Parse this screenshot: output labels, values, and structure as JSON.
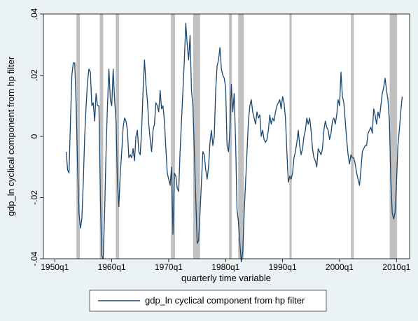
{
  "chart_data": {
    "type": "line",
    "y_label": "gdp_ln cyclical component from hp filter",
    "x_label": "quarterly time variable",
    "xlim": [
      1948,
      2012.3
    ],
    "ylim": [
      -0.04,
      0.04
    ],
    "xticks": [
      {
        "value": 1950,
        "label": "1950q1"
      },
      {
        "value": 1960,
        "label": "1960q1"
      },
      {
        "value": 1970,
        "label": "1970q1"
      },
      {
        "value": 1980,
        "label": "1980q1"
      },
      {
        "value": 1990,
        "label": "1990q1"
      },
      {
        "value": 2000,
        "label": "2000q1"
      },
      {
        "value": 2010,
        "label": "2010q1"
      }
    ],
    "yticks": [
      {
        "value": -0.04,
        "label": "-.04"
      },
      {
        "value": -0.02,
        "label": "-.02"
      },
      {
        "value": 0,
        "label": "0"
      },
      {
        "value": 0.02,
        "label": ".02"
      },
      {
        "value": 0.04,
        "label": ".04"
      }
    ],
    "grid": false,
    "shade_color": "#c0c0c0",
    "shaded_periods": [
      [
        1953.8,
        1954.4
      ],
      [
        1957.9,
        1958.5
      ],
      [
        1960.7,
        1961.3
      ],
      [
        1970.4,
        1971.1
      ],
      [
        1974.3,
        1975.5
      ],
      [
        1980.6,
        1981.1
      ],
      [
        1982.2,
        1983.2
      ],
      [
        1991.2,
        1991.6
      ],
      [
        2002.0,
        2002.5
      ],
      [
        2008.8,
        2010.1
      ]
    ],
    "x": [
      1952.0,
      1952.25,
      1952.5,
      1952.75,
      1953.0,
      1953.25,
      1953.5,
      1953.75,
      1954.0,
      1954.25,
      1954.5,
      1954.75,
      1955.0,
      1955.25,
      1955.5,
      1955.75,
      1956.0,
      1956.25,
      1956.5,
      1956.75,
      1957.0,
      1957.25,
      1957.5,
      1957.75,
      1958.0,
      1958.25,
      1958.5,
      1958.75,
      1959.0,
      1959.25,
      1959.5,
      1959.75,
      1960.0,
      1960.25,
      1960.5,
      1960.75,
      1961.0,
      1961.25,
      1961.5,
      1961.75,
      1962.0,
      1962.25,
      1962.5,
      1962.75,
      1963.0,
      1963.25,
      1963.5,
      1963.75,
      1964.0,
      1964.25,
      1964.5,
      1964.75,
      1965.0,
      1965.25,
      1965.5,
      1965.75,
      1966.0,
      1966.25,
      1966.5,
      1966.75,
      1967.0,
      1967.25,
      1967.5,
      1967.75,
      1968.0,
      1968.25,
      1968.5,
      1968.75,
      1969.0,
      1969.25,
      1969.5,
      1969.75,
      1970.0,
      1970.25,
      1970.5,
      1970.75,
      1971.0,
      1971.25,
      1971.5,
      1971.75,
      1972.0,
      1972.25,
      1972.5,
      1972.75,
      1973.0,
      1973.25,
      1973.5,
      1973.75,
      1974.0,
      1974.25,
      1974.5,
      1974.75,
      1975.0,
      1975.25,
      1975.5,
      1975.75,
      1976.0,
      1976.25,
      1976.5,
      1976.75,
      1977.0,
      1977.25,
      1977.5,
      1977.75,
      1978.0,
      1978.25,
      1978.5,
      1978.75,
      1979.0,
      1979.25,
      1979.5,
      1979.75,
      1980.0,
      1980.25,
      1980.5,
      1980.75,
      1981.0,
      1981.25,
      1981.5,
      1981.75,
      1982.0,
      1982.25,
      1982.5,
      1982.75,
      1983.0,
      1983.25,
      1983.5,
      1983.75,
      1984.0,
      1984.25,
      1984.5,
      1984.75,
      1985.0,
      1985.25,
      1985.5,
      1985.75,
      1986.0,
      1986.25,
      1986.5,
      1986.75,
      1987.0,
      1987.25,
      1987.5,
      1987.75,
      1988.0,
      1988.25,
      1988.5,
      1988.75,
      1989.0,
      1989.25,
      1989.5,
      1989.75,
      1990.0,
      1990.25,
      1990.5,
      1990.75,
      1991.0,
      1991.25,
      1991.5,
      1991.75,
      1992.0,
      1992.25,
      1992.5,
      1992.75,
      1993.0,
      1993.25,
      1993.5,
      1993.75,
      1994.0,
      1994.25,
      1994.5,
      1994.75,
      1995.0,
      1995.25,
      1995.5,
      1995.75,
      1996.0,
      1996.25,
      1996.5,
      1996.75,
      1997.0,
      1997.25,
      1997.5,
      1997.75,
      1998.0,
      1998.25,
      1998.5,
      1998.75,
      1999.0,
      1999.25,
      1999.5,
      1999.75,
      2000.0,
      2000.25,
      2000.5,
      2000.75,
      2001.0,
      2001.25,
      2001.5,
      2001.75,
      2002.0,
      2002.25,
      2002.5,
      2002.75,
      2003.0,
      2003.25,
      2003.5,
      2003.75,
      2004.0,
      2004.25,
      2004.5,
      2004.75,
      2005.0,
      2005.25,
      2005.5,
      2005.75,
      2006.0,
      2006.25,
      2006.5,
      2006.75,
      2007.0,
      2007.25,
      2007.5,
      2007.75,
      2008.0,
      2008.25,
      2008.5,
      2008.75,
      2009.0,
      2009.25,
      2009.5,
      2009.75,
      2010.0,
      2010.25,
      2010.5,
      2010.75,
      2011.0
    ],
    "series": [
      {
        "name": "gdp_ln cyclical component from hp filter",
        "color": "#1a476f",
        "values": [
          -0.005,
          -0.011,
          -0.012,
          0.005,
          0.02,
          0.024,
          0.024,
          0.01,
          -0.01,
          -0.025,
          -0.03,
          -0.027,
          -0.015,
          0.0,
          0.01,
          0.018,
          0.022,
          0.021,
          0.01,
          0.011,
          0.005,
          0.014,
          0.01,
          0.01,
          -0.02,
          -0.039,
          -0.04,
          -0.025,
          -0.005,
          0.01,
          0.022,
          0.012,
          0.01,
          0.022,
          0.012,
          0.005,
          -0.015,
          -0.023,
          -0.012,
          -0.005,
          0.003,
          0.006,
          0.005,
          0.002,
          -0.007,
          -0.006,
          -0.007,
          -0.004,
          -0.008,
          0.0,
          0.002,
          -0.005,
          -0.006,
          0.002,
          0.015,
          0.025,
          0.017,
          0.012,
          0.004,
          -0.001,
          -0.005,
          0.002,
          0.004,
          0.011,
          0.01,
          0.008,
          0.015,
          0.009,
          0.01,
          0.005,
          -0.004,
          -0.012,
          -0.014,
          -0.016,
          -0.01,
          -0.032,
          -0.012,
          -0.013,
          -0.017,
          -0.018,
          -0.005,
          0.005,
          0.015,
          0.025,
          0.037,
          0.03,
          0.025,
          0.033,
          0.015,
          0.01,
          -0.005,
          -0.02,
          -0.035,
          -0.034,
          -0.025,
          -0.015,
          -0.005,
          -0.006,
          -0.011,
          -0.014,
          -0.01,
          -0.002,
          0.002,
          -0.003,
          0.0,
          0.015,
          0.023,
          0.025,
          0.029,
          0.022,
          0.02,
          0.019,
          0.016,
          -0.003,
          -0.005,
          0.002,
          0.017,
          0.008,
          0.014,
          -0.002,
          -0.024,
          -0.028,
          -0.035,
          -0.041,
          -0.038,
          -0.025,
          -0.015,
          -0.005,
          0.005,
          0.01,
          0.012,
          0.008,
          0.006,
          0.004,
          0.008,
          0.006,
          0.007,
          0.0,
          0.002,
          -0.001,
          -0.002,
          -0.001,
          0.002,
          0.007,
          0.004,
          0.006,
          0.005,
          0.008,
          0.01,
          0.011,
          0.012,
          0.009,
          0.013,
          0.011,
          0.006,
          -0.005,
          -0.015,
          -0.013,
          -0.014,
          -0.012,
          -0.007,
          -0.005,
          -0.002,
          0.002,
          -0.003,
          -0.006,
          -0.004,
          0.0,
          0.002,
          0.006,
          0.004,
          0.006,
          0.002,
          -0.004,
          -0.007,
          -0.008,
          -0.01,
          -0.004,
          -0.005,
          -0.006,
          -0.004,
          0.002,
          0.005,
          0.003,
          0.002,
          -0.001,
          0.001,
          0.005,
          0.006,
          0.004,
          0.007,
          0.012,
          0.01,
          0.021,
          0.013,
          0.011,
          0.005,
          -0.001,
          -0.006,
          -0.009,
          -0.006,
          -0.007,
          -0.007,
          -0.009,
          -0.012,
          -0.014,
          -0.016,
          -0.011,
          -0.005,
          -0.004,
          -0.003,
          -0.003,
          0.001,
          0.002,
          0.003,
          0.001,
          0.009,
          0.007,
          0.004,
          0.008,
          0.006,
          0.01,
          0.014,
          0.016,
          0.019,
          0.015,
          0.012,
          0.005,
          -0.014,
          -0.025,
          -0.027,
          -0.025,
          -0.015,
          -0.003,
          0.002,
          0.008,
          0.013
        ]
      }
    ]
  }
}
